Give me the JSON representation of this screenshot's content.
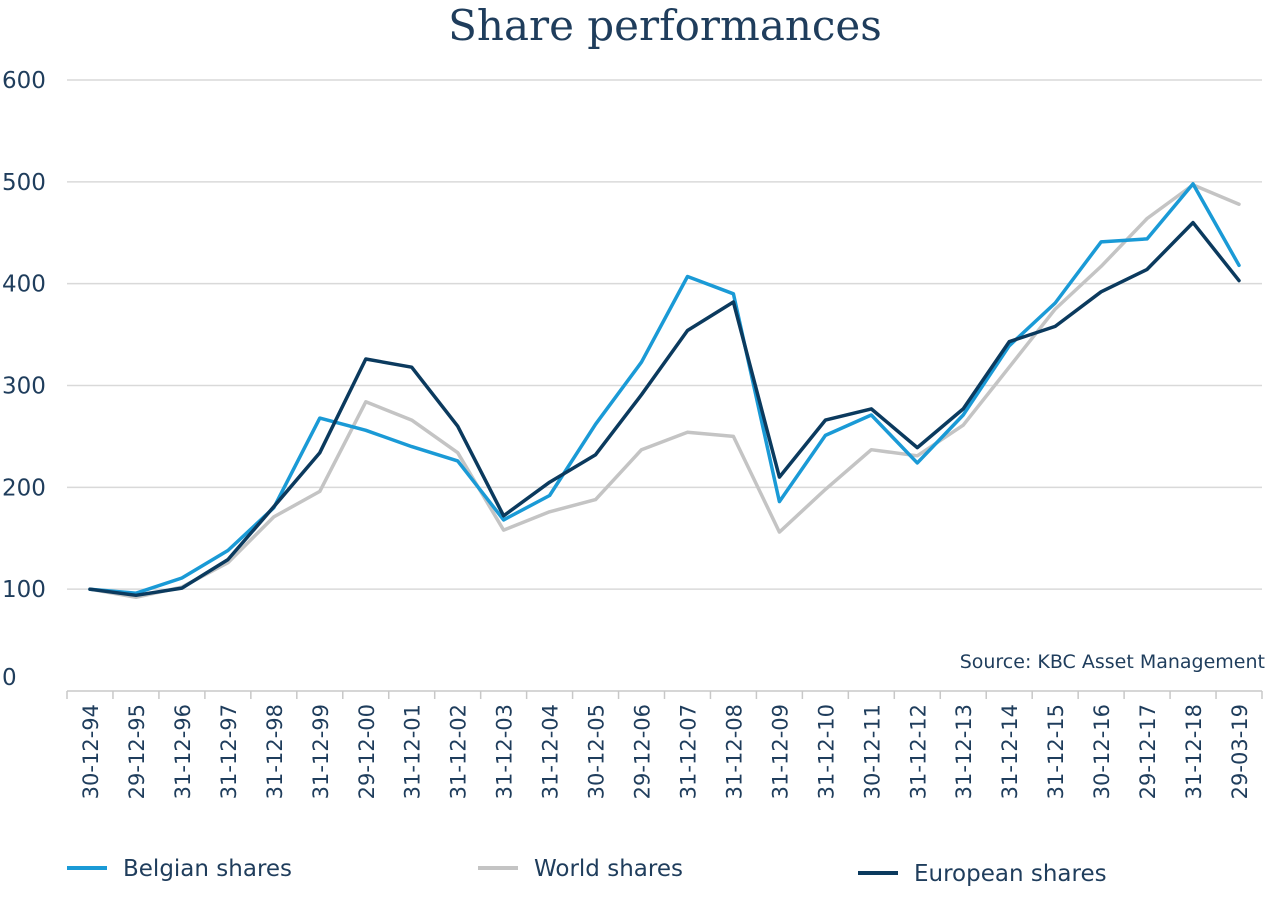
{
  "chart_data": {
    "type": "line",
    "title": "Share performances",
    "source": "Source: KBC Asset Management",
    "ylim": [
      0,
      600
    ],
    "yticks": [
      0,
      100,
      200,
      300,
      400,
      500,
      600
    ],
    "grid": true,
    "legend_position": "bottom",
    "categories": [
      "30-12-94",
      "29-12-95",
      "31-12-96",
      "31-12-97",
      "31-12-98",
      "31-12-99",
      "29-12-00",
      "31-12-01",
      "31-12-02",
      "31-12-03",
      "31-12-04",
      "30-12-05",
      "29-12-06",
      "31-12-07",
      "31-12-08",
      "31-12-09",
      "31-12-10",
      "30-12-11",
      "31-12-12",
      "31-12-13",
      "31-12-14",
      "31-12-15",
      "30-12-16",
      "29-12-17",
      "31-12-18",
      "29-03-19"
    ],
    "series": [
      {
        "name": "Belgian shares",
        "color": "#1a9ad6",
        "values": [
          100,
          96,
          111,
          138,
          180,
          268,
          256,
          240,
          226,
          168,
          192,
          262,
          323,
          407,
          390,
          186,
          251,
          271,
          224,
          271,
          339,
          381,
          441,
          444,
          498,
          418
        ]
      },
      {
        "name": "World shares",
        "color": "#c4c4c4",
        "values": [
          100,
          92,
          102,
          126,
          171,
          196,
          284,
          266,
          234,
          158,
          176,
          188,
          237,
          254,
          250,
          156,
          198,
          237,
          231,
          261,
          318,
          375,
          417,
          464,
          497,
          478
        ]
      },
      {
        "name": "European shares",
        "color": "#0b3a5e",
        "values": [
          100,
          94,
          101,
          129,
          181,
          234,
          326,
          318,
          260,
          172,
          205,
          232,
          291,
          354,
          382,
          210,
          266,
          277,
          239,
          277,
          343,
          358,
          392,
          414,
          460,
          403
        ]
      }
    ]
  }
}
